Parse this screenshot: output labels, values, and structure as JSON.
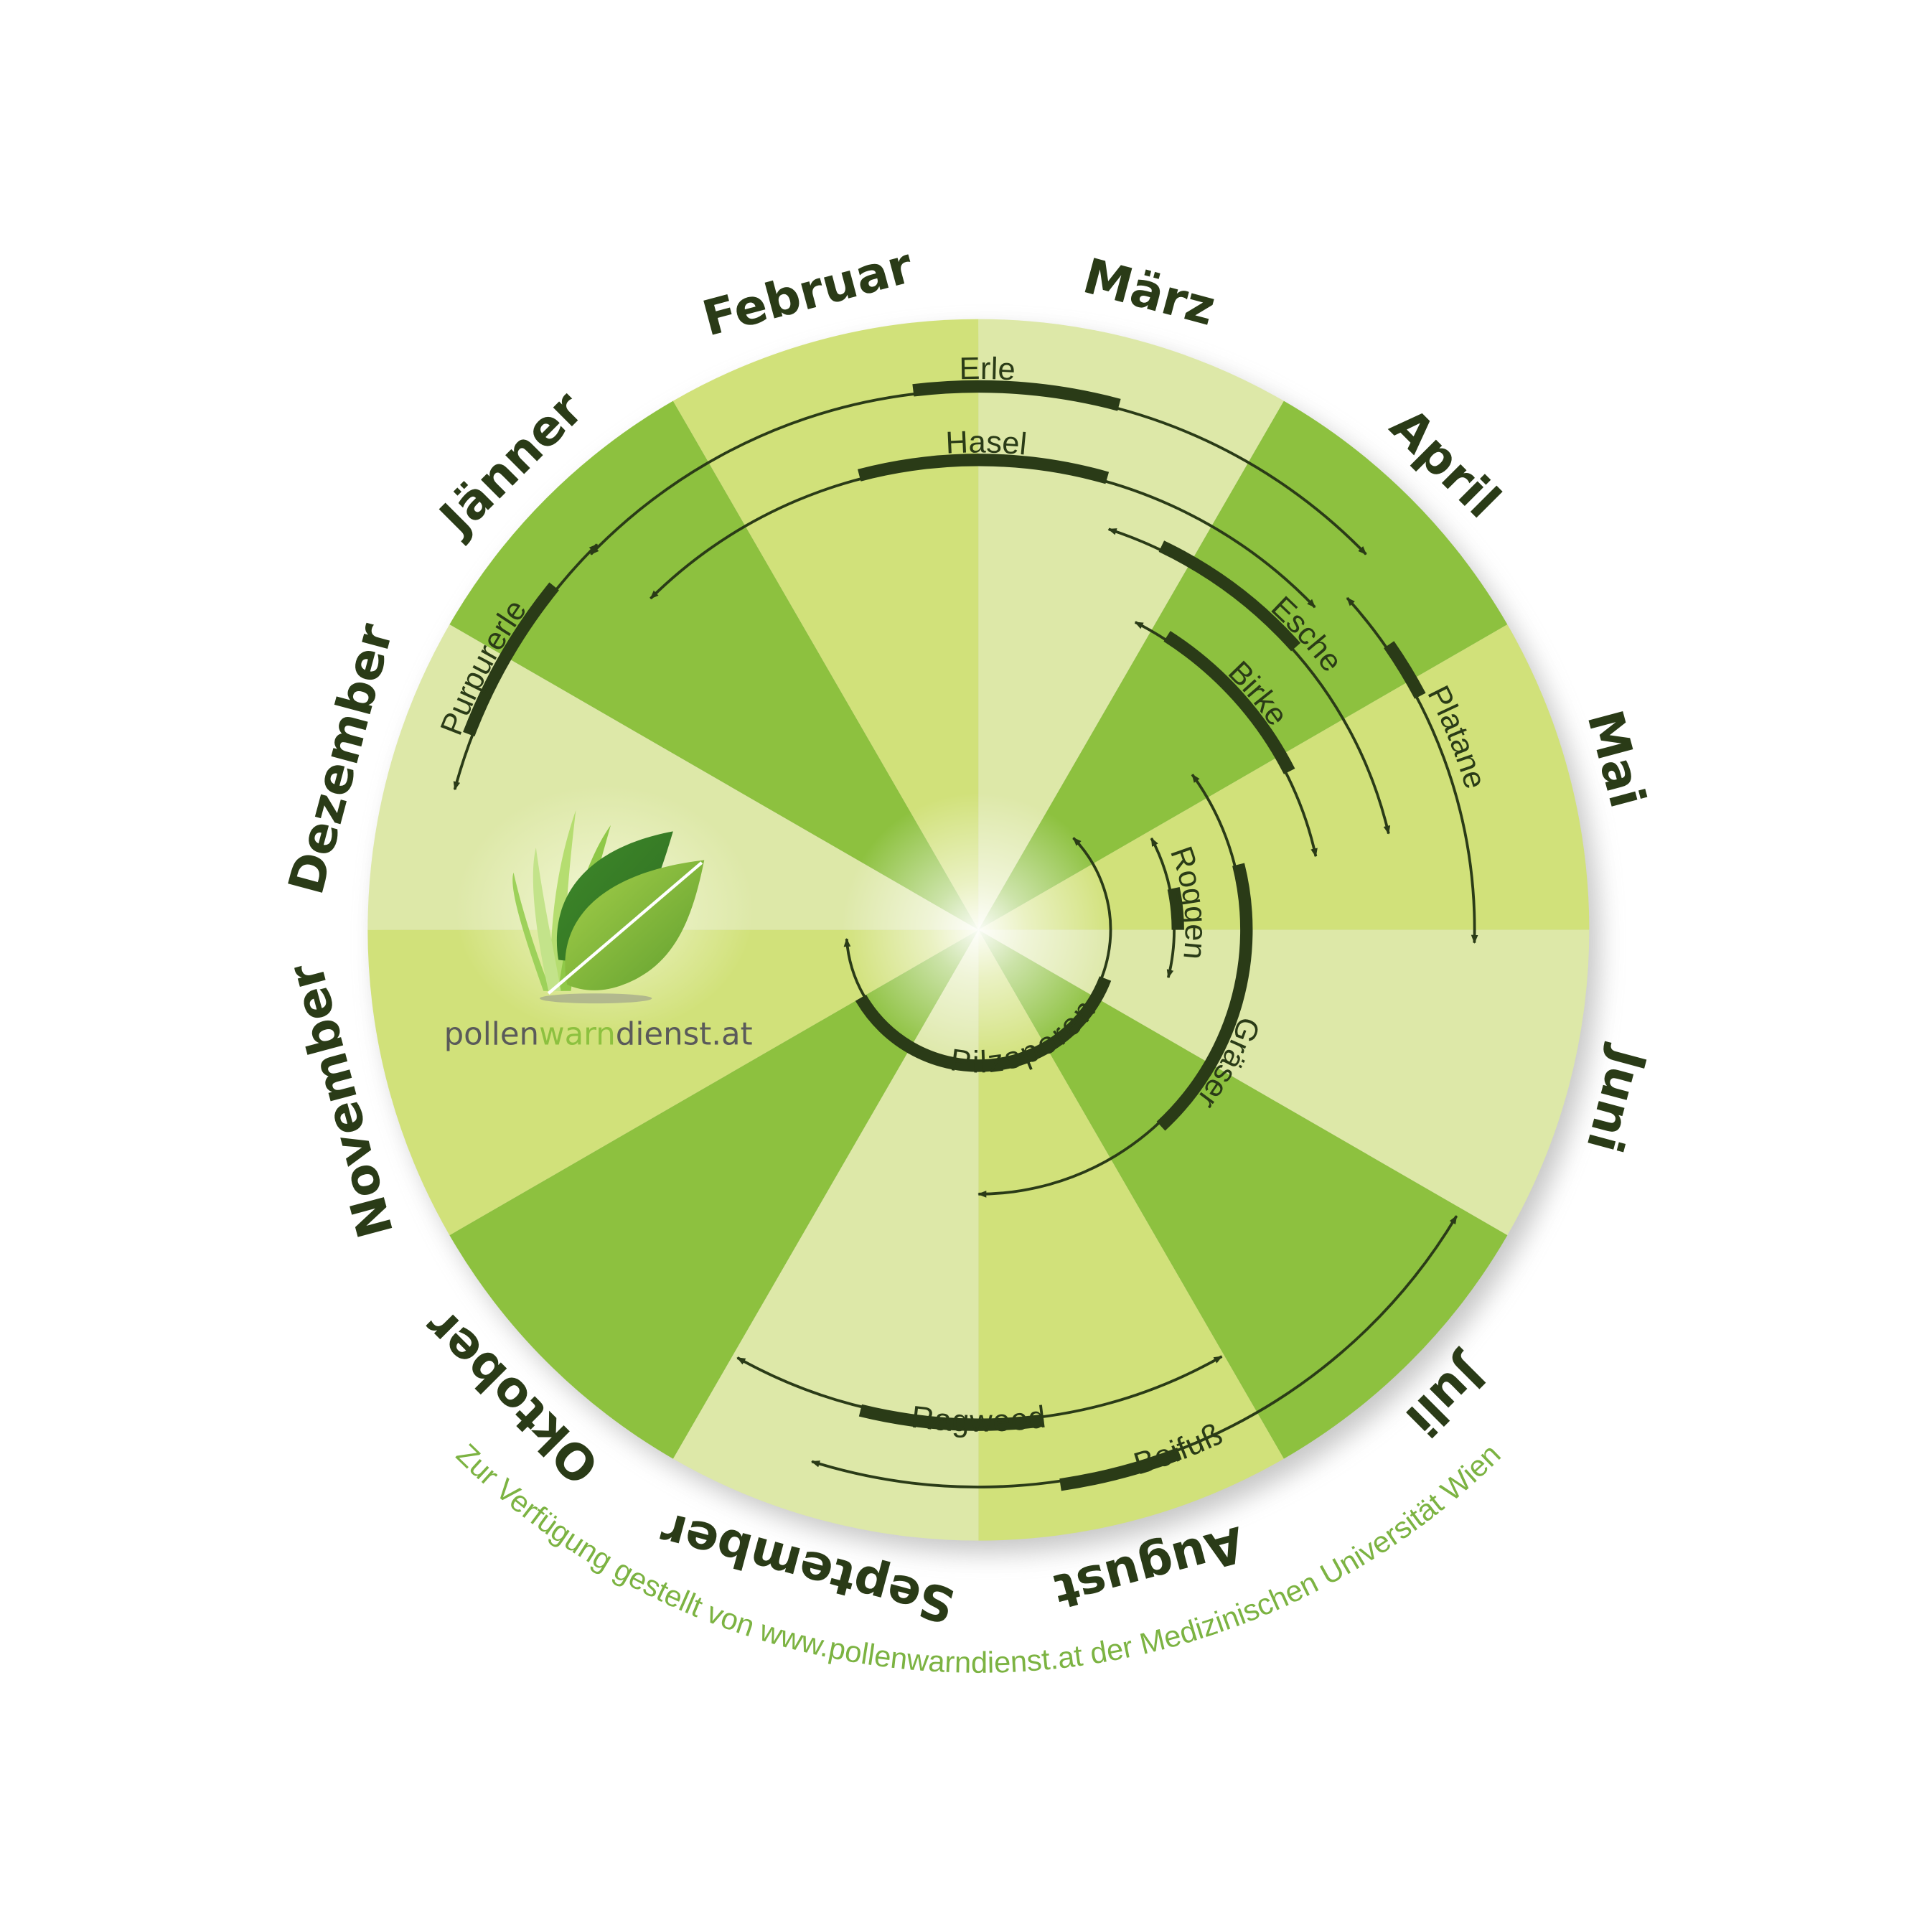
{
  "colors": {
    "sector_dark": "#8dc13f",
    "sector_medium": "#d1e17a",
    "sector_light": "#dde8a8",
    "text_dark": "#2a3b17",
    "credit_green": "#7cb342",
    "logo_gray": "#5a5a5a",
    "logo_green": "#8dc13f"
  },
  "months": [
    "Jänner",
    "Februar",
    "März",
    "April",
    "Mai",
    "Juni",
    "Juli",
    "August",
    "September",
    "Oktober",
    "November",
    "Dezember"
  ],
  "logo": {
    "part1": "pollen",
    "part2": "warn",
    "part3": "dienst.at",
    "icon": "leaf-and-grass-icon"
  },
  "credit": "Zur Verfügung gestellt von www.pollenwarndienst.at der Medizinischen Universität Wien",
  "pollen_seasons_note_units": "month of year (1 = start of Jänner)",
  "pollen": [
    {
      "name": "Erle",
      "start": 1.47,
      "end": 4.53,
      "peak": [
        2.77,
        3.5
      ]
    },
    {
      "name": "Hasel",
      "start": 1.51,
      "end": 4.54,
      "peak": [
        2.51,
        3.53
      ]
    },
    {
      "name": "Purpurerle",
      "start": 12.5,
      "end": 1.51,
      "peak": [
        12.7,
        1.3
      ]
    },
    {
      "name": "Esche",
      "start": 3.6,
      "end": 5.56,
      "peak": [
        3.85,
        4.61
      ]
    },
    {
      "name": "Birke",
      "start": 3.9,
      "end": 5.59,
      "peak": [
        4.09,
        5.1
      ]
    },
    {
      "name": "Platane",
      "start": 4.6,
      "end": 6.05,
      "peak": [
        4.84,
        5.07
      ]
    },
    {
      "name": "Roggen",
      "start": 5.07,
      "end": 6.47,
      "peak": [
        5.6,
        6.0
      ]
    },
    {
      "name": "Gräser",
      "start": 4.8,
      "end": 9.0,
      "peak": [
        5.53,
        7.57
      ]
    },
    {
      "name": "Pilzsporen",
      "start": 4.53,
      "end": 11.87,
      "peak": [
        6.7,
        11.0
      ]
    },
    {
      "name": "Ragweed",
      "start": 8.01,
      "end": 9.98,
      "peak": [
        8.75,
        9.46
      ]
    },
    {
      "name": "Beifuß",
      "start": 7.03,
      "end": 9.58,
      "peak": [
        8.3,
        8.72
      ]
    }
  ]
}
